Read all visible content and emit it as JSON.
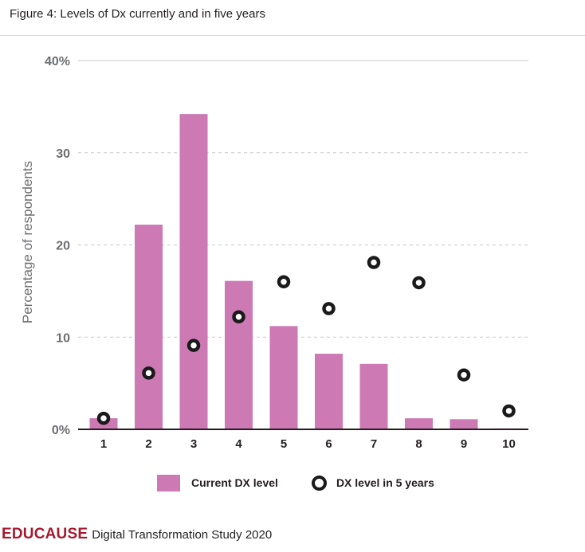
{
  "figure": {
    "title": "Figure 4: Levels of Dx currently and in five years"
  },
  "chart_data": {
    "type": "bar",
    "categories": [
      "1",
      "2",
      "3",
      "4",
      "5",
      "6",
      "7",
      "8",
      "9",
      "10"
    ],
    "series": [
      {
        "name": "Current DX level",
        "type": "bar",
        "color": "#cc79b4",
        "values": [
          1.2,
          22.2,
          34.2,
          16.1,
          11.2,
          8.2,
          7.1,
          1.2,
          1.1,
          0.1
        ]
      },
      {
        "name": "DX level in 5 years",
        "type": "scatter",
        "color": "#1a1a1a",
        "values": [
          1.2,
          6.1,
          9.1,
          12.2,
          16.0,
          13.1,
          18.1,
          15.9,
          5.9,
          2.0
        ]
      }
    ],
    "ylabel": "Percentage of respondents",
    "xlabel": "",
    "ylim": [
      0,
      40
    ],
    "yticks": [
      {
        "value": 40,
        "label": "40%"
      },
      {
        "value": 30,
        "label": "30"
      },
      {
        "value": 20,
        "label": "20"
      },
      {
        "value": 10,
        "label": "10"
      },
      {
        "value": 0,
        "label": "0%"
      }
    ],
    "grid": "dashed horizontal",
    "legend_position": "bottom"
  },
  "legend": {
    "current_label": "Current DX level",
    "future_label": "DX level in 5 years"
  },
  "footer": {
    "brand": "EDUCAUSE",
    "study": "Digital Transformation Study 2020"
  }
}
